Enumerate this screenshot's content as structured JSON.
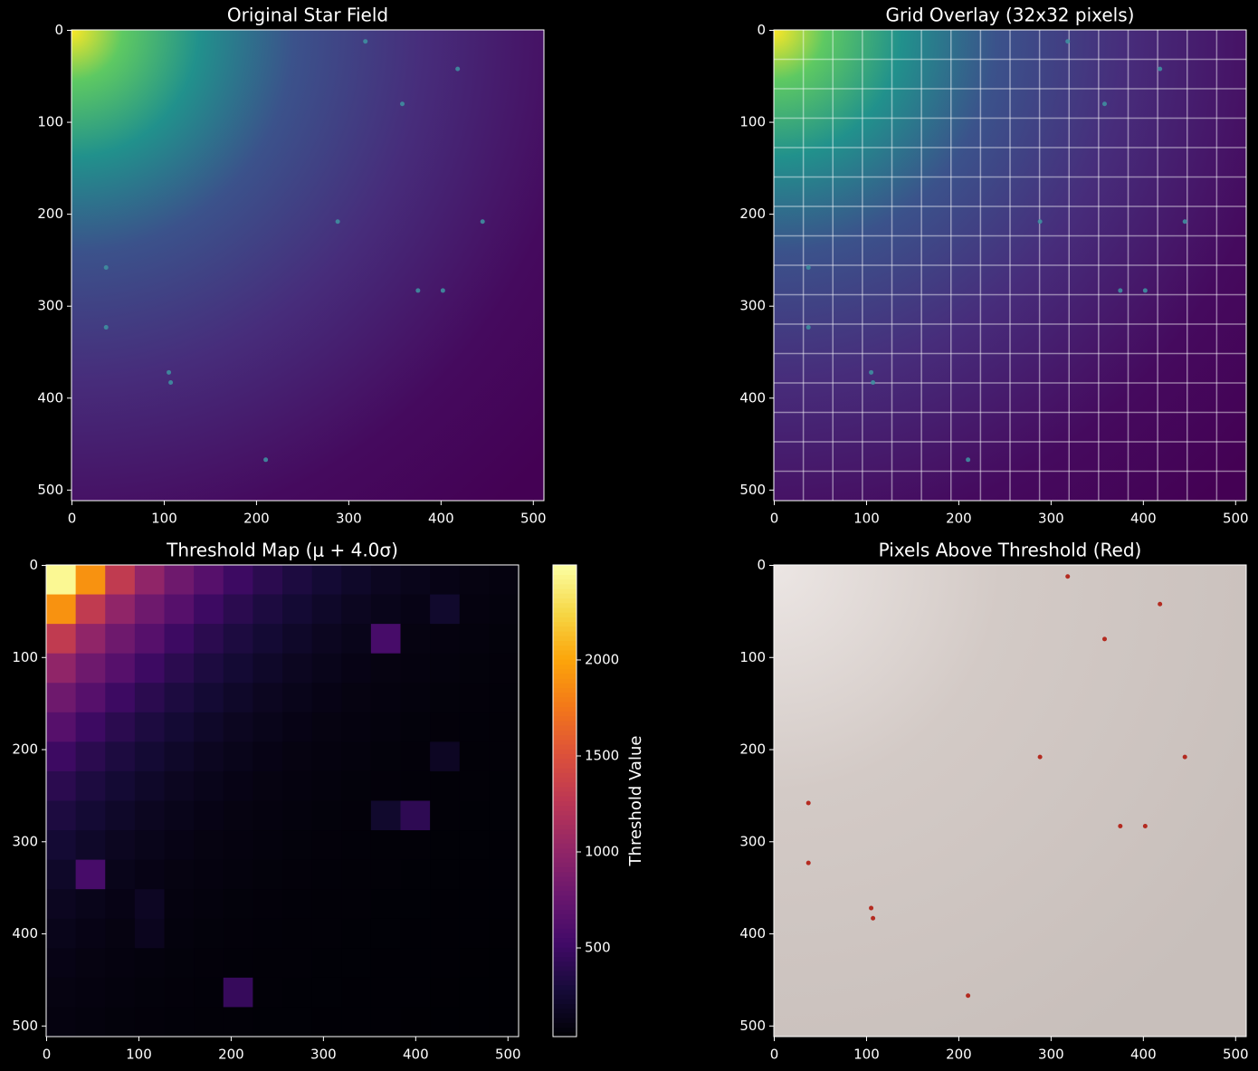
{
  "chart_data": [
    {
      "type": "image",
      "title": "Original Star Field",
      "colormap": "viridis",
      "xlim": [
        -0.5,
        511.5
      ],
      "ylim": [
        511.5,
        -0.5
      ],
      "xticks": [
        0,
        100,
        200,
        300,
        400,
        500
      ],
      "yticks": [
        0,
        100,
        200,
        300,
        400,
        500
      ],
      "stars": {
        "x": [
          358,
          418,
          445,
          402,
          375,
          37,
          107,
          105,
          210,
          37,
          318,
          288
        ],
        "y": [
          80,
          42,
          208,
          283,
          283,
          323,
          383,
          372,
          467,
          258,
          12,
          208
        ]
      },
      "star_color": "#3f8fa0"
    },
    {
      "type": "image",
      "title": "Grid Overlay (32x32 pixels)",
      "colormap": "viridis",
      "grid_spacing": 32,
      "xlim": [
        -0.5,
        511.5
      ],
      "ylim": [
        511.5,
        -0.5
      ],
      "xticks": [
        0,
        100,
        200,
        300,
        400,
        500
      ],
      "yticks": [
        0,
        100,
        200,
        300,
        400,
        500
      ],
      "stars": {
        "x": [
          358,
          418,
          445,
          402,
          375,
          37,
          107,
          105,
          210,
          37,
          318,
          288
        ],
        "y": [
          80,
          42,
          208,
          283,
          283,
          323,
          383,
          372,
          467,
          258,
          12,
          208
        ]
      },
      "star_color": "#3f8fa0"
    },
    {
      "type": "heatmap",
      "title": "Threshold Map (μ + 4.0σ)",
      "colormap": "inferno",
      "cell_size": 32,
      "colorbar_label": "Threshold Value",
      "clim": [
        38,
        2495
      ],
      "colorbar_ticks": [
        500,
        1000,
        1500,
        2000
      ],
      "xlim": [
        -0.5,
        511.5
      ],
      "ylim": [
        511.5,
        -0.5
      ],
      "xticks": [
        0,
        100,
        200,
        300,
        400,
        500
      ],
      "yticks": [
        0,
        100,
        200,
        300,
        400,
        500
      ],
      "values": [
        [
          2450,
          1900,
          1300,
          1000,
          800,
          650,
          500,
          400,
          320,
          260,
          210,
          170,
          140,
          115,
          100,
          90
        ],
        [
          1900,
          1300,
          1000,
          800,
          650,
          500,
          400,
          320,
          260,
          210,
          170,
          140,
          115,
          230,
          90,
          80
        ],
        [
          1300,
          1000,
          800,
          650,
          500,
          400,
          320,
          260,
          210,
          170,
          140,
          560,
          100,
          90,
          80,
          72
        ],
        [
          1000,
          800,
          650,
          500,
          400,
          320,
          260,
          210,
          170,
          140,
          115,
          100,
          90,
          80,
          72,
          66
        ],
        [
          800,
          650,
          500,
          400,
          320,
          260,
          210,
          170,
          140,
          115,
          100,
          90,
          80,
          72,
          66,
          62
        ],
        [
          650,
          500,
          400,
          320,
          260,
          210,
          170,
          140,
          115,
          100,
          90,
          80,
          72,
          66,
          62,
          58
        ],
        [
          500,
          400,
          320,
          260,
          210,
          170,
          140,
          115,
          100,
          90,
          80,
          72,
          66,
          180,
          58,
          55
        ],
        [
          400,
          320,
          260,
          210,
          170,
          140,
          115,
          100,
          90,
          80,
          72,
          66,
          62,
          58,
          55,
          52
        ],
        [
          320,
          260,
          210,
          170,
          140,
          115,
          100,
          90,
          80,
          72,
          66,
          230,
          420,
          55,
          52,
          50
        ],
        [
          260,
          210,
          170,
          140,
          115,
          100,
          90,
          80,
          72,
          66,
          62,
          58,
          55,
          52,
          50,
          48
        ],
        [
          210,
          560,
          140,
          115,
          100,
          90,
          80,
          72,
          66,
          62,
          58,
          55,
          52,
          50,
          48,
          46
        ],
        [
          170,
          140,
          115,
          180,
          90,
          80,
          72,
          66,
          62,
          58,
          55,
          52,
          50,
          48,
          46,
          45
        ],
        [
          140,
          115,
          100,
          160,
          80,
          72,
          66,
          62,
          58,
          55,
          52,
          50,
          48,
          46,
          45,
          44
        ],
        [
          115,
          100,
          90,
          80,
          72,
          66,
          62,
          58,
          55,
          52,
          50,
          48,
          46,
          45,
          44,
          43
        ],
        [
          100,
          90,
          80,
          72,
          66,
          62,
          460,
          55,
          52,
          50,
          48,
          46,
          45,
          44,
          43,
          42
        ],
        [
          90,
          80,
          72,
          66,
          62,
          58,
          55,
          52,
          50,
          48,
          46,
          45,
          44,
          43,
          42,
          41
        ]
      ]
    },
    {
      "type": "image",
      "title": "Pixels Above Threshold (Red)",
      "colormap": "overlay",
      "xlim": [
        -0.5,
        511.5
      ],
      "ylim": [
        511.5,
        -0.5
      ],
      "xticks": [
        0,
        100,
        200,
        300,
        400,
        500
      ],
      "yticks": [
        0,
        100,
        200,
        300,
        400,
        500
      ],
      "stars": {
        "x": [
          358,
          418,
          445,
          402,
          375,
          37,
          107,
          105,
          210,
          37,
          318,
          288
        ],
        "y": [
          80,
          42,
          208,
          283,
          283,
          323,
          383,
          372,
          467,
          258,
          12,
          208
        ]
      },
      "star_color": "#b01a0e"
    }
  ]
}
